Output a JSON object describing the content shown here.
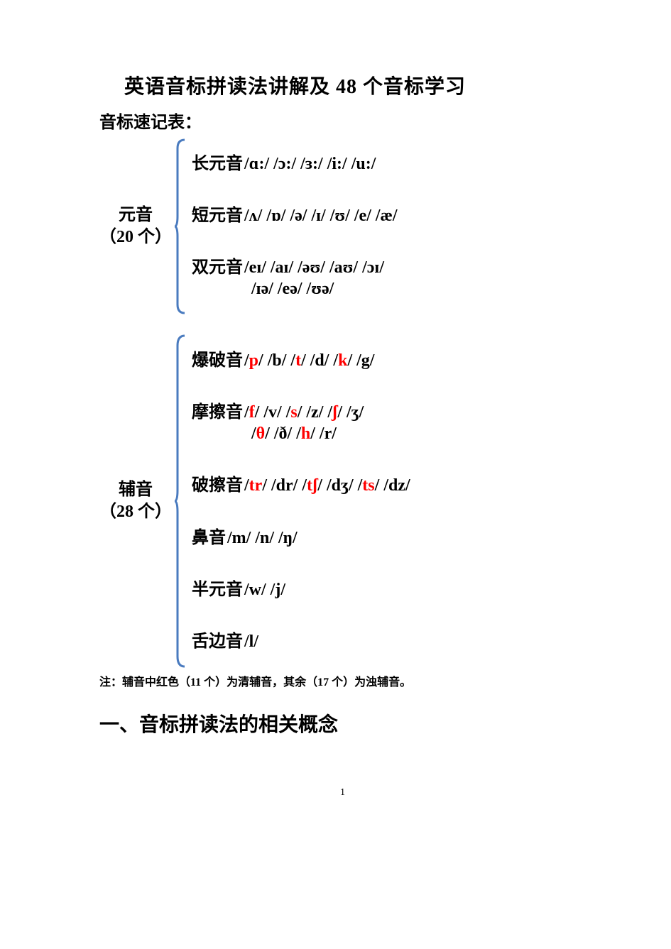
{
  "title": "英语音标拼读法讲解及 48 个音标学习",
  "subtitle": "音标速记表：",
  "bracket_color": "#4a7bbf",
  "body_color": "#000000",
  "red_color": "#ff0000",
  "font_size_body": 24,
  "font_size_title": 28,
  "font_size_note": 16,
  "vowel_group": {
    "label_line1": "元音",
    "label_line2": "（20 个）",
    "bracket_height": 248,
    "rows": [
      {
        "label": "长元音",
        "line1": [
          {
            "t": "/ɑ:/"
          },
          {
            "t": " /ɔ:/"
          },
          {
            "t": " /ɜ:/"
          },
          {
            "t": " /i:/"
          },
          {
            "t": " /u:/"
          }
        ]
      },
      {
        "label": "短元音",
        "line1": [
          {
            "t": "/ʌ/"
          },
          {
            "t": " /ɒ/"
          },
          {
            "t": " /ə/"
          },
          {
            "t": " /ɪ/"
          },
          {
            "t": " /ʊ/"
          },
          {
            "t": " /e/"
          },
          {
            "t": " /æ/"
          }
        ]
      },
      {
        "label": "双元音",
        "line1": [
          {
            "t": "/eɪ/"
          },
          {
            "t": " /aɪ/"
          },
          {
            "t": " /əʊ/"
          },
          {
            "t": " /aʊ/"
          },
          {
            "t": " /ɔɪ/"
          }
        ],
        "line2": [
          {
            "t": "/ɪə/"
          },
          {
            "t": " /eə/"
          },
          {
            "t": " /ʊə/"
          }
        ]
      }
    ]
  },
  "consonant_group": {
    "label_line1": "辅音",
    "label_line2": "（28 个）",
    "bracket_height": 470,
    "rows": [
      {
        "label": "爆破音",
        "line1": [
          {
            "t": "/",
            "r": false
          },
          {
            "t": "p",
            "r": true
          },
          {
            "t": "/",
            "r": false
          },
          {
            "t": " /b/"
          },
          {
            "t": " /",
            "r": false
          },
          {
            "t": "t",
            "r": true
          },
          {
            "t": "/",
            "r": false
          },
          {
            "t": " /d/"
          },
          {
            "t": " /",
            "r": false
          },
          {
            "t": "k",
            "r": true
          },
          {
            "t": "/",
            "r": false
          },
          {
            "t": " /g/"
          }
        ]
      },
      {
        "label": "摩擦音",
        "line1": [
          {
            "t": "/",
            "r": false
          },
          {
            "t": "f",
            "r": true
          },
          {
            "t": "/",
            "r": false
          },
          {
            "t": " /v/"
          },
          {
            "t": " /",
            "r": false
          },
          {
            "t": "s",
            "r": true
          },
          {
            "t": "/",
            "r": false
          },
          {
            "t": " /z/"
          },
          {
            "t": " /",
            "r": false
          },
          {
            "t": "ʃ",
            "r": true
          },
          {
            "t": "/",
            "r": false
          },
          {
            "t": " /ʒ/"
          }
        ],
        "line2": [
          {
            "t": "/",
            "r": false
          },
          {
            "t": "θ",
            "r": true
          },
          {
            "t": "/",
            "r": false
          },
          {
            "t": " /ð/"
          },
          {
            "t": " /",
            "r": false
          },
          {
            "t": "h",
            "r": true
          },
          {
            "t": "/",
            "r": false
          },
          {
            "t": " /r/"
          }
        ]
      },
      {
        "label": "破擦音",
        "line1": [
          {
            "t": "/",
            "r": false
          },
          {
            "t": "tr",
            "r": true
          },
          {
            "t": "/",
            "r": false
          },
          {
            "t": " /dr/"
          },
          {
            "t": " /",
            "r": false
          },
          {
            "t": "tʃ",
            "r": true
          },
          {
            "t": "/",
            "r": false
          },
          {
            "t": " /dʒ/"
          },
          {
            "t": " /",
            "r": false
          },
          {
            "t": "ts",
            "r": true
          },
          {
            "t": "/",
            "r": false
          },
          {
            "t": " /dz/"
          }
        ]
      },
      {
        "label": "鼻音",
        "line1": [
          {
            "t": "/m/"
          },
          {
            "t": " /n/"
          },
          {
            "t": " /ŋ/"
          }
        ]
      },
      {
        "label": "半元音",
        "line1": [
          {
            "t": "/w/"
          },
          {
            "t": " /j/"
          }
        ]
      },
      {
        "label": "舌边音",
        "line1": [
          {
            "t": "/l/"
          }
        ]
      }
    ]
  },
  "note": "注：辅音中红色（11 个）为清辅音，其余（17 个）为浊辅音。",
  "section_heading": "一、音标拼读法的相关概念",
  "page_number": "1"
}
